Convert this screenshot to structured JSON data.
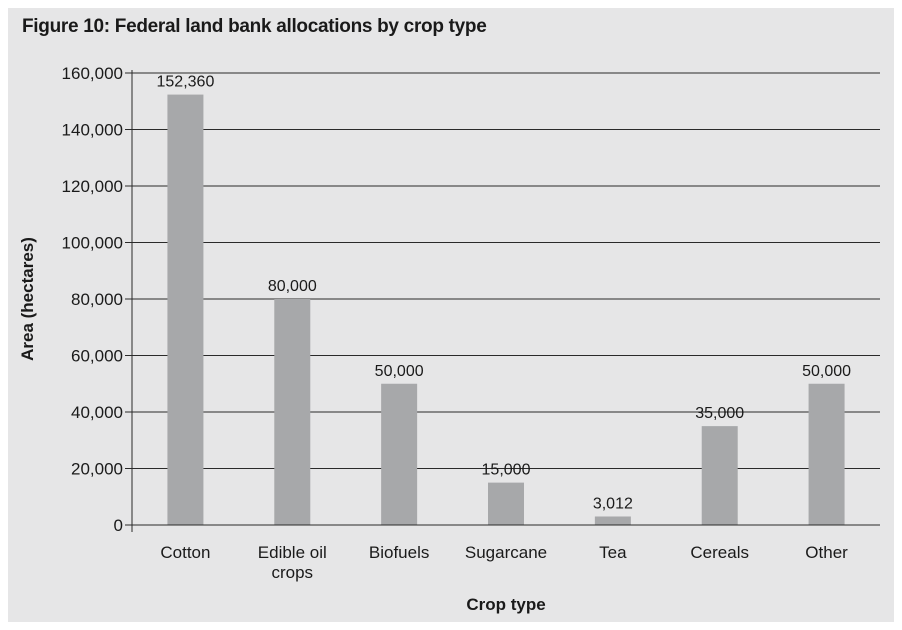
{
  "colors": {
    "background": "#e6e6e7",
    "bar": "#a7a8aa",
    "grid": "#2a2a2a",
    "text": "#1a1a1a"
  },
  "chart_data": {
    "type": "bar",
    "title": "Figure 10: Federal land bank allocations by crop type",
    "xlabel": "Crop type",
    "ylabel": "Area (hectares)",
    "categories": [
      "Cotton",
      "Edible oil crops",
      "Biofuels",
      "Sugarcane",
      "Tea",
      "Cereals",
      "Other"
    ],
    "category_lines": [
      [
        "Cotton"
      ],
      [
        "Edible oil",
        "crops"
      ],
      [
        "Biofuels"
      ],
      [
        "Sugarcane"
      ],
      [
        "Tea"
      ],
      [
        "Cereals"
      ],
      [
        "Other"
      ]
    ],
    "values": [
      152360,
      80000,
      50000,
      15000,
      3012,
      35000,
      50000
    ],
    "value_labels": [
      "152,360",
      "80,000",
      "50,000",
      "15,000",
      "3,012",
      "35,000",
      "50,000"
    ],
    "yticks": [
      0,
      20000,
      40000,
      60000,
      80000,
      100000,
      120000,
      140000,
      160000
    ],
    "ytick_labels": [
      "0",
      "20,000",
      "40,000",
      "60,000",
      "80,000",
      "100,000",
      "120,000",
      "140,000",
      "160,000"
    ],
    "ylim": [
      0,
      160000
    ],
    "grid": true,
    "legend": "none"
  }
}
